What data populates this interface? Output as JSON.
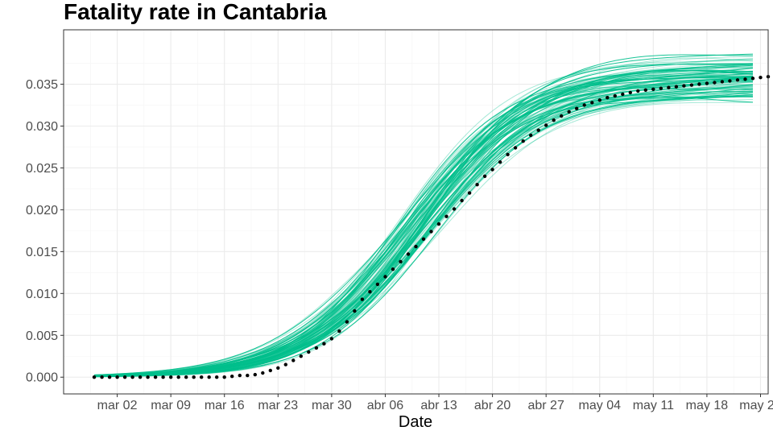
{
  "chart_data": {
    "type": "line",
    "title": "Fatality rate in  Cantabria",
    "xlabel": "Date",
    "ylabel": "",
    "x_tick_labels": [
      "mar 02",
      "mar 09",
      "mar 16",
      "mar 23",
      "mar 30",
      "abr 06",
      "abr 13",
      "abr 20",
      "abr 27",
      "may 04",
      "may 11",
      "may 18",
      "may 25"
    ],
    "y_tick_labels": [
      "0.000",
      "0.005",
      "0.010",
      "0.015",
      "0.020",
      "0.025",
      "0.030",
      "0.035"
    ],
    "x_range": [
      "2020-02-24",
      "2020-05-26"
    ],
    "y_range": [
      -0.002,
      0.0415
    ],
    "grid": true,
    "observed_series": {
      "x_start": "2020-02-28",
      "values": [
        0.0,
        0.0,
        0.0,
        0.0,
        0.0,
        0.0,
        0.0,
        0.0,
        0.0,
        0.0,
        0.0,
        0.0,
        0.0,
        0.0,
        0.0,
        0.0,
        0.0,
        0.0,
        0.0001,
        0.0002,
        0.0002,
        0.0003,
        0.0005,
        0.0008,
        0.0011,
        0.0015,
        0.002,
        0.0025,
        0.003,
        0.0035,
        0.004,
        0.0046,
        0.0055,
        0.0066,
        0.0079,
        0.0093,
        0.0102,
        0.0111,
        0.012,
        0.0129,
        0.0138,
        0.0147,
        0.0156,
        0.0165,
        0.0174,
        0.0183,
        0.0192,
        0.0201,
        0.0211,
        0.022,
        0.023,
        0.024,
        0.0248,
        0.0257,
        0.0266,
        0.0274,
        0.0282,
        0.0289,
        0.0295,
        0.0301,
        0.0307,
        0.0312,
        0.0317,
        0.0321,
        0.0325,
        0.0328,
        0.0331,
        0.0334,
        0.0336,
        0.0338,
        0.034,
        0.0342,
        0.0343,
        0.0344,
        0.0345,
        0.0346,
        0.0347,
        0.0348,
        0.0349,
        0.035,
        0.0351,
        0.0352,
        0.0353,
        0.0354,
        0.0355,
        0.0356,
        0.0357,
        0.0358,
        0.0359
      ]
    },
    "simulations": {
      "count": 100,
      "x_start": "2020-02-28",
      "x_end": "2020-05-24",
      "final_value_range": [
        0.0328,
        0.0392
      ],
      "color": "#00BF8C"
    },
    "observed_color": "#000000"
  }
}
